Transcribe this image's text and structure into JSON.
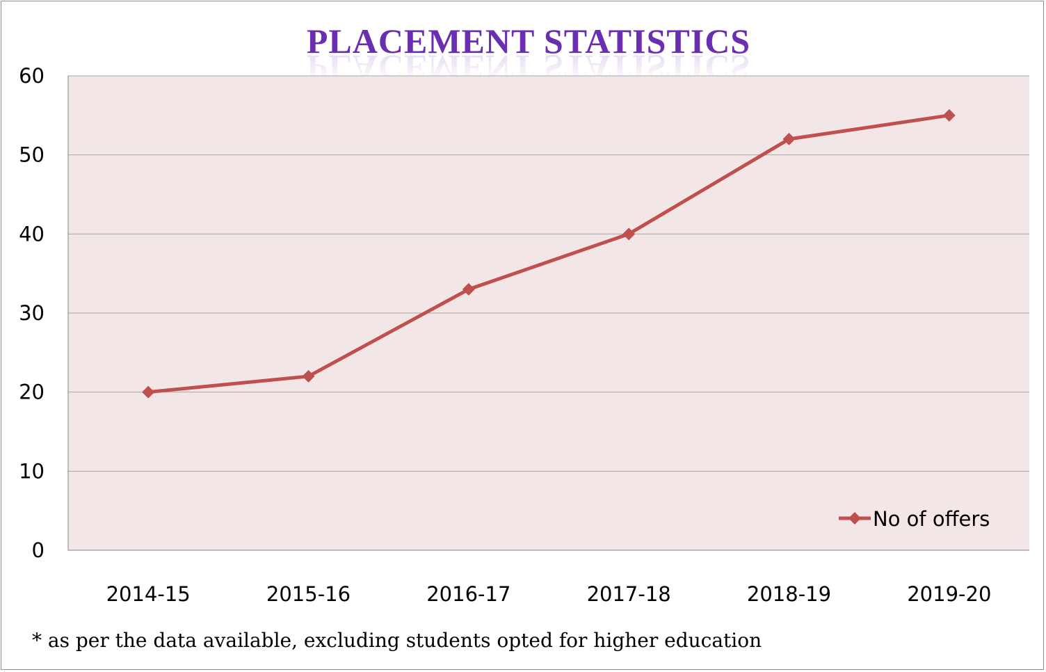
{
  "chart_data": {
    "type": "line",
    "title": "PLACEMENT STATISTICS",
    "categories": [
      "2014-15",
      "2015-16",
      "2016-17",
      "2017-18",
      "2018-19",
      "2019-20"
    ],
    "series": [
      {
        "name": "No of offers",
        "values": [
          20,
          22,
          33,
          40,
          52,
          55
        ],
        "color": "#c0504d",
        "marker": "diamond"
      }
    ],
    "ylim": [
      0,
      60
    ],
    "yticks": [
      "0",
      "10",
      "20",
      "30",
      "40",
      "50",
      "60"
    ],
    "grid": true,
    "legend_position": "bottom-right",
    "plot_background": "#f2e6e6",
    "title_color": "#6a2fb0"
  },
  "footnote": "* as per the data available, excluding students opted for higher education"
}
